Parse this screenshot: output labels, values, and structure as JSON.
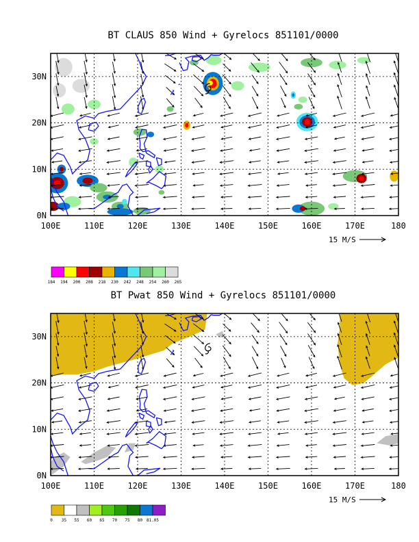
{
  "panels": [
    {
      "id": "claus",
      "title": "BT CLAUS 850 Wind + Gyrelocs 851101/0000",
      "lon_labels": [
        "100E",
        "110E",
        "120E",
        "130E",
        "140E",
        "150E",
        "160E",
        "170E",
        "180"
      ],
      "lat_labels": [
        "0N",
        "10N",
        "20N",
        "30N"
      ],
      "scale_label": "15 M/S",
      "colorbar": {
        "colors": [
          "#ff00ff",
          "#ffff00",
          "#ff0000",
          "#a00000",
          "#e8b400",
          "#0a78d2",
          "#50e6f0",
          "#78c878",
          "#a0f0a0",
          "#dcdcdc"
        ],
        "labels": [
          "184",
          "194",
          "200",
          "208",
          "218",
          "230",
          "242",
          "248",
          "254",
          "260",
          "265"
        ]
      }
    },
    {
      "id": "pwat",
      "title": "BT Pwat 850 Wind + Gyrelocs 851101/0000",
      "lon_labels": [
        "100E",
        "110E",
        "120E",
        "130E",
        "140E",
        "150E",
        "160E",
        "170E",
        "180"
      ],
      "lat_labels": [
        "0N",
        "10N",
        "20N",
        "30N"
      ],
      "scale_label": "15 M/S",
      "colorbar": {
        "colors": [
          "#e2b814",
          "#ffffff",
          "#c0c0c0",
          "#a0f020",
          "#50c810",
          "#28a000",
          "#107800",
          "#0a78d2",
          "#8c1ec8"
        ],
        "labels": [
          "0",
          "35",
          "55",
          "60",
          "65",
          "70",
          "75",
          "80",
          "81.05"
        ]
      }
    }
  ]
}
